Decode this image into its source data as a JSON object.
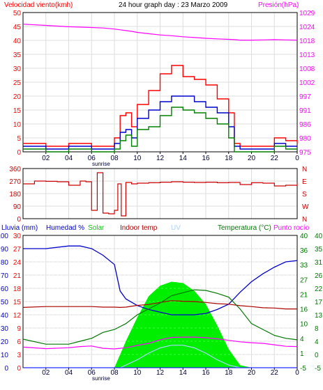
{
  "colors": {
    "wind_speed": "#ff0000",
    "wind_avg": "#0000cc",
    "wind_gust": "#008000",
    "pressure": "#ff00ff",
    "direction": "#cc0000",
    "humidity": "#0000cc",
    "solar": "#00ee00",
    "indoor_temp": "#aa0000",
    "uv": "#aad4ff",
    "temperature": "#007700",
    "dew_point": "#ff00ff",
    "rain": "#0000ff",
    "grid": "#dddddd"
  },
  "chart_data": [
    {
      "type": "line",
      "title": "24 hour graph day : 23 Marzo 2009",
      "ylabel_left": "Velocidad viento(kmh)",
      "ylabel_right": "Presión(hPa)",
      "x_tick_labels": [
        "02",
        "04",
        "06",
        "08",
        "10",
        "12",
        "14",
        "16",
        "18",
        "20",
        "22",
        "0"
      ],
      "x_note": "sunrise",
      "y_left_ticks": [
        "0",
        "5",
        "10",
        "15",
        "20",
        "25",
        "30",
        "35",
        "40",
        "45",
        "50"
      ],
      "y_right_ticks": [
        "975",
        "980",
        "986",
        "991",
        "997",
        "1002",
        "1008",
        "1013",
        "1018",
        "1024",
        "1029"
      ],
      "ylim_left": [
        0,
        50
      ],
      "ylim_right": [
        975,
        1029
      ],
      "x": [
        0,
        2,
        4,
        6,
        7,
        8,
        8.5,
        9,
        9.5,
        10,
        11,
        12,
        13,
        14,
        15,
        16,
        17,
        18,
        18.5,
        19,
        20,
        21,
        22,
        23,
        24
      ],
      "series": [
        {
          "key": "wind_speed",
          "values": [
            3,
            2,
            3,
            2,
            2,
            5,
            13,
            14,
            9,
            17,
            22,
            28,
            31,
            27,
            26,
            24,
            19,
            14,
            3,
            2,
            2,
            2,
            5,
            4,
            3
          ]
        },
        {
          "key": "wind_avg",
          "values": [
            2,
            1,
            2,
            1,
            1,
            3,
            7,
            8,
            5,
            12,
            15,
            18,
            20,
            20,
            18,
            16,
            14,
            9,
            2,
            1,
            1,
            1,
            3,
            2,
            2
          ]
        },
        {
          "key": "wind_gust",
          "values": [
            1,
            0,
            1,
            0,
            0,
            1,
            4,
            6,
            2,
            8,
            9,
            13,
            16,
            15,
            14,
            12,
            10,
            5,
            0,
            0,
            0,
            0,
            2,
            1,
            1
          ]
        },
        {
          "key": "pressure",
          "values": [
            1024.5,
            1024,
            1023.5,
            1023.2,
            1023,
            1022.6,
            1022.3,
            1022,
            1021.7,
            1021.3,
            1020.8,
            1020.3,
            1020,
            1019.6,
            1019.3,
            1019,
            1018.8,
            1018.6,
            1018.5,
            1018.3,
            1018.3,
            1018.4,
            1018.5,
            1018.4,
            1018.3
          ]
        }
      ]
    },
    {
      "type": "line",
      "ylim": [
        0,
        360
      ],
      "y_left_ticks": [
        "0",
        "90",
        "180",
        "270",
        "360"
      ],
      "y_right_labels": [
        "N",
        "W",
        "S",
        "E",
        "N"
      ],
      "x": [
        0,
        1,
        2,
        3,
        4,
        5,
        5.5,
        6,
        6.5,
        7,
        7.5,
        8,
        8.3,
        8.6,
        9,
        9.5,
        10,
        11,
        12,
        13,
        14,
        15,
        16,
        17,
        18,
        19,
        20,
        21,
        22,
        23,
        24
      ],
      "series": [
        {
          "key": "direction",
          "values": [
            250,
            270,
            268,
            265,
            240,
            270,
            265,
            60,
            330,
            40,
            35,
            60,
            250,
            20,
            260,
            250,
            255,
            258,
            262,
            265,
            262,
            260,
            262,
            258,
            260,
            245,
            258,
            255,
            235,
            240,
            255
          ]
        }
      ]
    },
    {
      "type": "line",
      "legend": [
        "Lluvia (mm)",
        "Humedad %",
        "Solar",
        "Indoor temp",
        "UV",
        "Temperatura (°C)",
        "Punto rocío"
      ],
      "x_tick_labels": [
        "02",
        "04",
        "06",
        "08",
        "10",
        "12",
        "14",
        "16",
        "18",
        "20",
        "22",
        "0"
      ],
      "x_note": "sunrise",
      "y_rain_ticks": [
        "0",
        "3",
        "6",
        "9",
        "12",
        "15",
        "18",
        "21",
        "24",
        "27",
        "30"
      ],
      "y_humidity_ticks": [
        "0",
        "10",
        "20",
        "30",
        "40",
        "50",
        "60",
        "70",
        "80",
        "90",
        "100"
      ],
      "y_temp_ticks_a": [
        "-5",
        "0",
        "4",
        "8",
        "13",
        "17",
        "22",
        "26",
        "31",
        "35",
        "40"
      ],
      "y_temp_ticks_b": [
        "-5",
        "1",
        "4",
        "10",
        "16",
        "21",
        "27",
        "33",
        "36",
        "40"
      ],
      "ylim_humidity": [
        0,
        100
      ],
      "ylim_temp": [
        -5,
        40
      ],
      "x": [
        0,
        2,
        4,
        5,
        6,
        7,
        8,
        8.5,
        9,
        10,
        11,
        12,
        13,
        14,
        15,
        16,
        17,
        18,
        19,
        20,
        21,
        22,
        23,
        24
      ],
      "series": [
        {
          "key": "humidity",
          "values": [
            90,
            90,
            92,
            92,
            90,
            85,
            78,
            58,
            52,
            47,
            44,
            42,
            40,
            40,
            40,
            41,
            44,
            48,
            57,
            65,
            71,
            76,
            80,
            81
          ]
        },
        {
          "key": "solar",
          "values": [
            0,
            0,
            0,
            0,
            0,
            0,
            0,
            10,
            20,
            38,
            54,
            62,
            65,
            64,
            58,
            48,
            32,
            14,
            2,
            0,
            0,
            0,
            0,
            0
          ]
        },
        {
          "key": "indoor_temp",
          "values": [
            15.5,
            15.8,
            15.8,
            15.8,
            15.8,
            15.6,
            15.6,
            15.5,
            15.6,
            16.2,
            16.5,
            17.2,
            17.8,
            17.6,
            17.5,
            17.2,
            16.8,
            16.6,
            16.1,
            15.8,
            15.4,
            15.3,
            15,
            15
          ]
        },
        {
          "key": "uv",
          "values": [
            0,
            0,
            0,
            0,
            0,
            0,
            0,
            0,
            2,
            6,
            11,
            15,
            17,
            17,
            15,
            11,
            6,
            2,
            0,
            0,
            0,
            0,
            0,
            0
          ]
        },
        {
          "key": "temperature",
          "values": [
            4.7,
            3,
            3,
            4,
            5,
            7,
            8,
            9,
            10,
            13,
            15,
            17,
            19.5,
            20.5,
            21.5,
            21.3,
            20.3,
            19,
            15,
            10,
            8,
            6,
            5,
            4.5
          ]
        },
        {
          "key": "dew_point",
          "values": [
            2,
            1.5,
            1.8,
            2.2,
            2.4,
            1.6,
            1.4,
            1.6,
            1.8,
            2.6,
            3.3,
            4.5,
            5.3,
            5.4,
            5.4,
            5.2,
            4.8,
            4.3,
            3.8,
            3.5,
            3.3,
            2.8,
            2.3,
            2.2
          ]
        },
        {
          "key": "rain",
          "values": [
            0,
            0,
            0,
            0,
            0,
            0,
            0,
            0,
            0,
            0,
            0,
            0,
            0,
            0,
            0,
            0,
            0,
            0,
            0,
            0,
            0,
            0,
            0,
            0
          ]
        }
      ]
    }
  ]
}
